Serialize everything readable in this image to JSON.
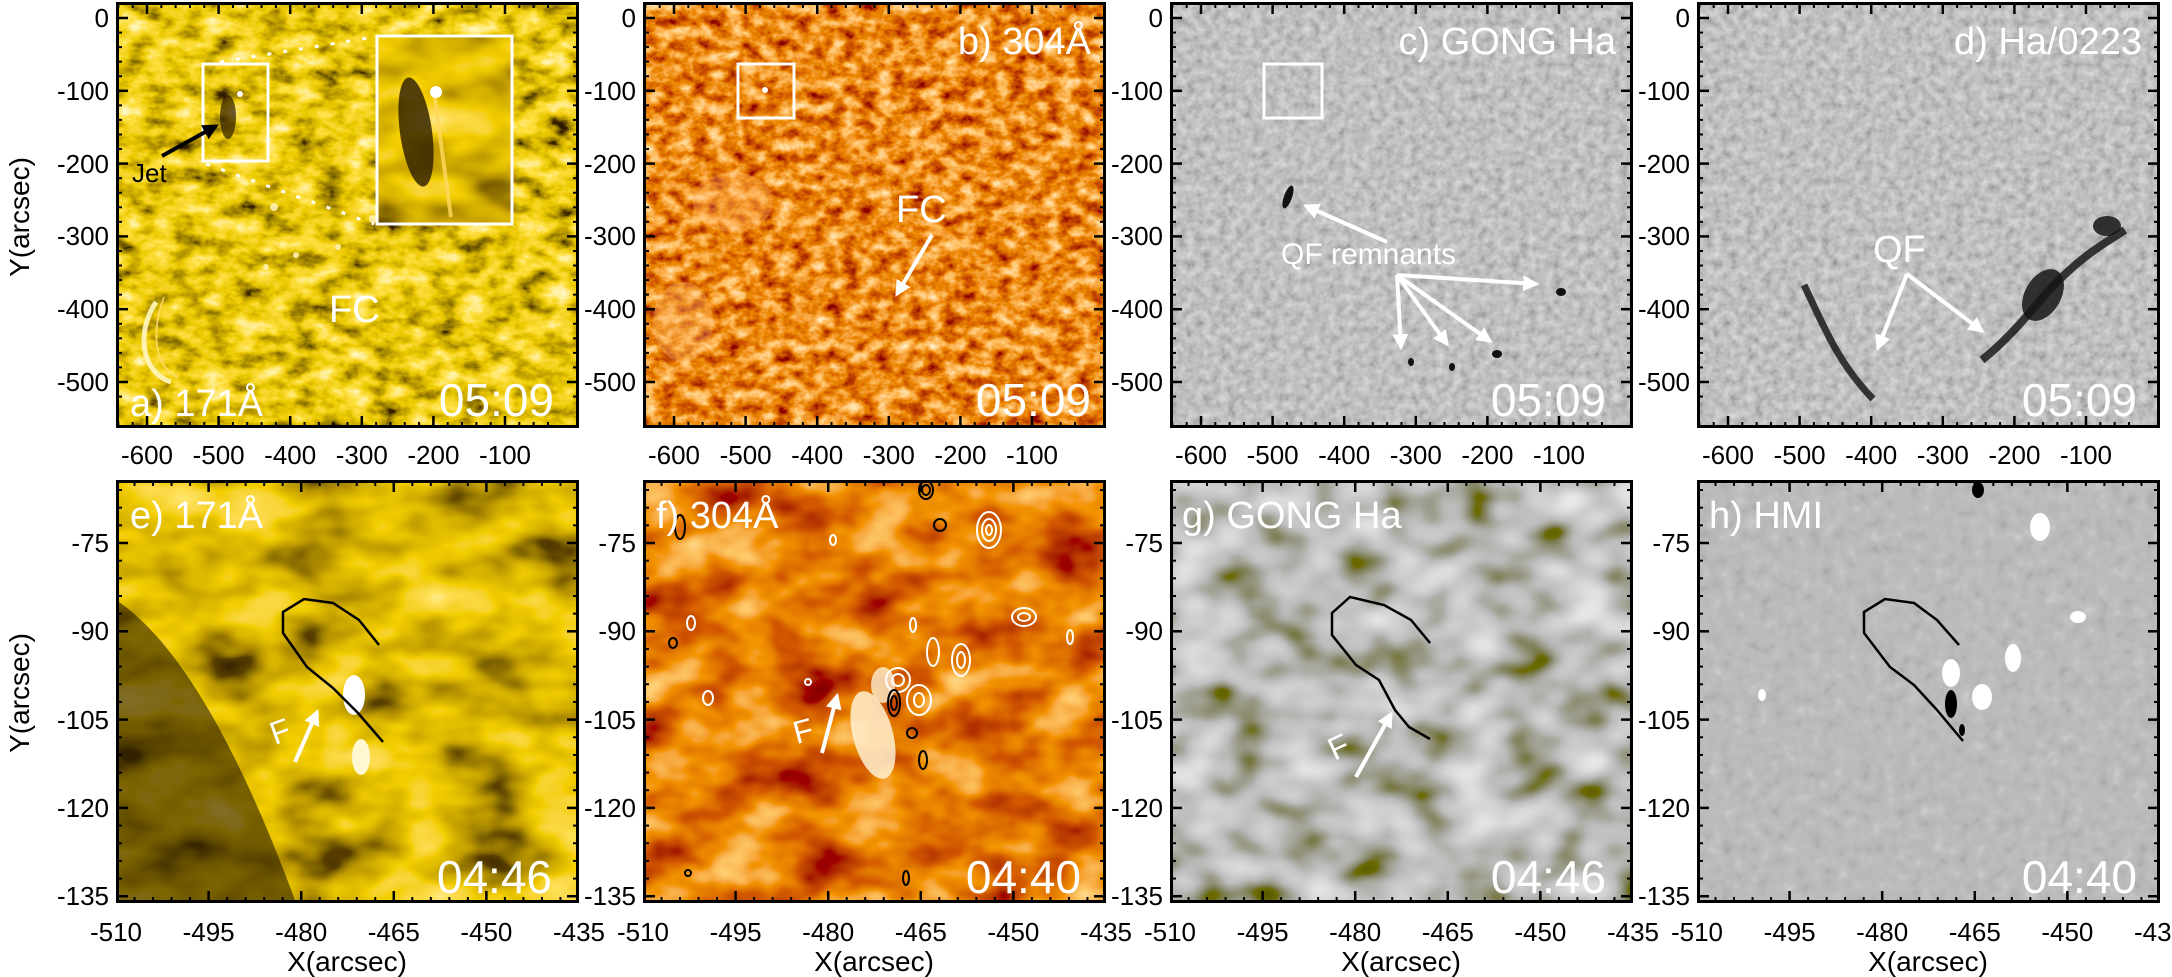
{
  "figure": {
    "colors": {
      "aia171": "#d9a400",
      "aia304": "#b83300",
      "halpha": "#8a8a8a",
      "hmi": "#7f7f7f",
      "annotation": "#ffffff",
      "contour_positive": "#ffffff",
      "contour_negative": "#000000"
    },
    "top_row": {
      "x_ticks": [
        "-600",
        "-500",
        "-400",
        "-300",
        "-200",
        "-100"
      ],
      "y_ticks": [
        "0",
        "-100",
        "-200",
        "-300",
        "-400",
        "-500"
      ],
      "ylabel": "Y(arcsec)"
    },
    "bottom_row": {
      "x_ticks": [
        "-510",
        "-495",
        "-480",
        "-465",
        "-450",
        "-435"
      ],
      "y_ticks": [
        "-75",
        "-90",
        "-105",
        "-120",
        "-135"
      ],
      "xlabel": "X(arcsec)",
      "ylabel": "Y(arcsec)"
    },
    "panels": {
      "a": {
        "label": "a) 171Å",
        "time": "05:09",
        "annotations": {
          "jet": "Jet",
          "fc": "FC"
        }
      },
      "b": {
        "label": "b) 304Å",
        "time": "05:09",
        "annotations": {
          "fc": "FC"
        }
      },
      "c": {
        "label": "c) GONG Ha",
        "time": "05:09",
        "annotations": {
          "qf": "QF remnants"
        }
      },
      "d": {
        "label": "d) Ha/0223",
        "time": "05:09",
        "annotations": {
          "qf": "QF"
        }
      },
      "e": {
        "label": "e) 171Å",
        "time": "04:46",
        "annotations": {
          "f": "F"
        }
      },
      "f": {
        "label": "f) 304Å",
        "time": "04:40",
        "annotations": {
          "f": "F"
        }
      },
      "g": {
        "label": "g) GONG Ha",
        "time": "04:46",
        "annotations": {
          "f": "F"
        }
      },
      "h": {
        "label": "h) HMI",
        "time": "04:40"
      }
    }
  }
}
